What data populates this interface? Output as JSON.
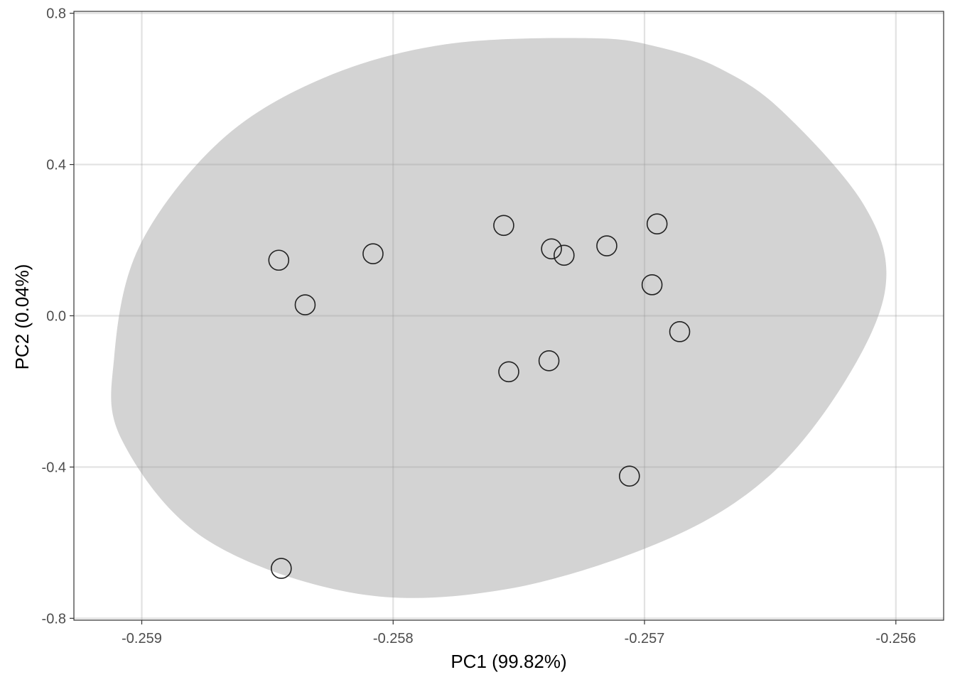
{
  "chart_data": {
    "type": "scatter",
    "xlabel": "PC1 (99.82%)",
    "ylabel": "PC2 (0.04%)",
    "xlim": [
      -0.25927,
      -0.25581
    ],
    "ylim": [
      -0.805,
      0.805
    ],
    "x_ticks": [
      -0.259,
      -0.258,
      -0.257,
      -0.256
    ],
    "x_tick_labels": [
      "-0.259",
      "-0.258",
      "-0.257",
      "-0.256"
    ],
    "y_ticks": [
      0.8,
      0.4,
      0.0,
      -0.4,
      -0.8
    ],
    "y_tick_labels": [
      "0.8",
      "0.4",
      "0.0",
      "-0.4",
      "-0.8"
    ],
    "grid": true,
    "theme": "bw",
    "series": [
      {
        "marker": "open-circle",
        "color": "#222222",
        "points": [
          {
            "x": -0.258455,
            "y": 0.147
          },
          {
            "x": -0.25835,
            "y": 0.029
          },
          {
            "x": -0.25808,
            "y": 0.164
          },
          {
            "x": -0.25756,
            "y": 0.239
          },
          {
            "x": -0.25737,
            "y": 0.177
          },
          {
            "x": -0.25732,
            "y": 0.16
          },
          {
            "x": -0.25715,
            "y": 0.185
          },
          {
            "x": -0.25695,
            "y": 0.243
          },
          {
            "x": -0.25697,
            "y": 0.082
          },
          {
            "x": -0.25686,
            "y": -0.042
          },
          {
            "x": -0.25738,
            "y": -0.119
          },
          {
            "x": -0.25754,
            "y": -0.148
          },
          {
            "x": -0.25706,
            "y": -0.424
          },
          {
            "x": -0.258445,
            "y": -0.668
          }
        ]
      }
    ],
    "ellipse": {
      "fill": "#d3d3d3",
      "polygon": [
        [
          -0.25721,
          0.734
        ],
        [
          -0.25694,
          0.71
        ],
        [
          -0.2567,
          0.654
        ],
        [
          -0.256455,
          0.543
        ],
        [
          -0.25613,
          0.296
        ],
        [
          -0.25604,
          0.082
        ],
        [
          -0.2562,
          -0.171
        ],
        [
          -0.25651,
          -0.427
        ],
        [
          -0.25693,
          -0.597
        ],
        [
          -0.25755,
          -0.723
        ],
        [
          -0.25815,
          -0.734
        ],
        [
          -0.25875,
          -0.589
        ],
        [
          -0.25908,
          -0.327
        ],
        [
          -0.25911,
          -0.111
        ],
        [
          -0.25901,
          0.183
        ],
        [
          -0.25869,
          0.461
        ],
        [
          -0.25828,
          0.628
        ],
        [
          -0.25779,
          0.718
        ]
      ]
    }
  }
}
